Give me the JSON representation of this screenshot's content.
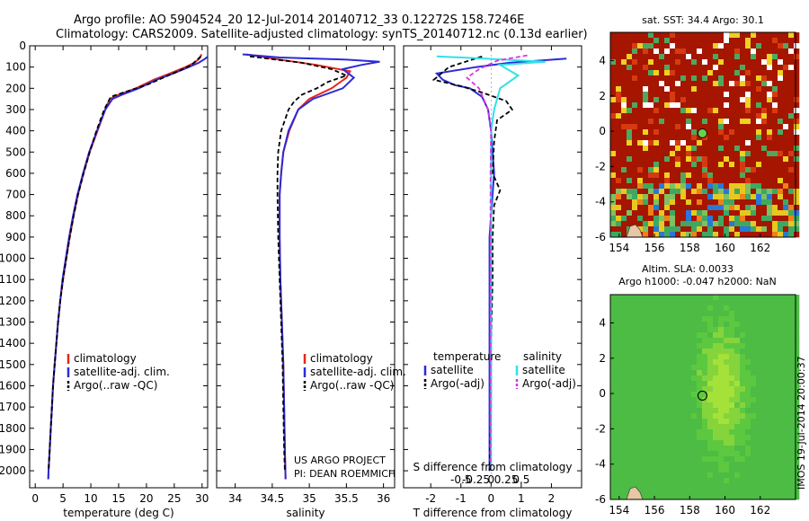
{
  "header": {
    "line1": "Argo profile: AO 5904524_20 12-Jul-2014 20140712_33 0.12272S 158.7246E",
    "line2": "Climatology: CARS2009. Satellite-adjusted climatology: synTS_20140712.nc (0.13d earlier)"
  },
  "colors": {
    "climatology": "#e8251b",
    "satellite": "#2b2bd6",
    "argo": "#000000",
    "sat_salinity": "#33e0e8",
    "argo_salinity_adj": "#e030e0"
  },
  "credits": {
    "line1": "US ARGO PROJECT",
    "line2": "PI: DEAN ROEMMICH"
  },
  "footer_stamp": "IMOS 19-Jul-2014 20:00:37",
  "chart_data": [
    {
      "id": "temperature",
      "type": "line",
      "xlabel": "temperature (deg C)",
      "ylabel": "",
      "xlim": [
        -1,
        31
      ],
      "ylim": [
        0,
        2080
      ],
      "y_reversed": true,
      "xticks": [
        0,
        5,
        10,
        15,
        20,
        25,
        30
      ],
      "yticks": [
        0,
        100,
        200,
        300,
        400,
        500,
        600,
        700,
        800,
        900,
        1000,
        1100,
        1200,
        1300,
        1400,
        1500,
        1600,
        1700,
        1800,
        1900,
        2000
      ],
      "legend": {
        "placement": "lower-center",
        "entries": [
          "climatology",
          "satellite-adj. clim.",
          "Argo(..raw -QC)"
        ]
      },
      "series": [
        {
          "name": "climatology",
          "color_key": "climatology",
          "dash": false,
          "points": [
            [
              29.9,
              40
            ],
            [
              29.5,
              60
            ],
            [
              28.6,
              80
            ],
            [
              27.0,
              100
            ],
            [
              24.2,
              130
            ],
            [
              21.3,
              160
            ],
            [
              18.1,
              200
            ],
            [
              15.0,
              230
            ],
            [
              13.4,
              250
            ],
            [
              12.6,
              300
            ],
            [
              11.2,
              400
            ],
            [
              9.8,
              500
            ],
            [
              8.7,
              600
            ],
            [
              7.7,
              700
            ],
            [
              6.9,
              800
            ],
            [
              6.2,
              900
            ],
            [
              5.6,
              1000
            ],
            [
              5.0,
              1100
            ],
            [
              4.5,
              1200
            ],
            [
              4.1,
              1300
            ],
            [
              3.8,
              1400
            ],
            [
              3.5,
              1500
            ],
            [
              3.2,
              1600
            ],
            [
              3.0,
              1700
            ],
            [
              2.8,
              1800
            ],
            [
              2.6,
              1900
            ],
            [
              2.4,
              2000
            ],
            [
              2.35,
              2040
            ]
          ]
        },
        {
          "name": "satellite-adj. clim.",
          "color_key": "satellite",
          "dash": false,
          "points": [
            [
              31.5,
              40
            ],
            [
              30.6,
              60
            ],
            [
              29.4,
              80
            ],
            [
              27.6,
              100
            ],
            [
              24.8,
              130
            ],
            [
              21.8,
              160
            ],
            [
              18.6,
              200
            ],
            [
              15.6,
              230
            ],
            [
              13.9,
              250
            ],
            [
              12.6,
              300
            ],
            [
              11.1,
              400
            ],
            [
              9.7,
              500
            ],
            [
              8.6,
              600
            ],
            [
              7.6,
              700
            ],
            [
              6.8,
              800
            ],
            [
              6.1,
              900
            ],
            [
              5.5,
              1000
            ],
            [
              4.9,
              1100
            ],
            [
              4.5,
              1200
            ],
            [
              4.1,
              1300
            ],
            [
              3.8,
              1400
            ],
            [
              3.5,
              1500
            ],
            [
              3.2,
              1600
            ],
            [
              3.0,
              1700
            ],
            [
              2.8,
              1800
            ],
            [
              2.6,
              1900
            ],
            [
              2.4,
              2000
            ],
            [
              2.35,
              2040
            ]
          ]
        },
        {
          "name": "Argo(..raw -QC)",
          "color_key": "argo",
          "dash": true,
          "points": [
            [
              29.8,
              50
            ],
            [
              28.9,
              70
            ],
            [
              28.1,
              90
            ],
            [
              26.5,
              110
            ],
            [
              23.0,
              150
            ],
            [
              20.4,
              180
            ],
            [
              17.0,
              210
            ],
            [
              14.7,
              230
            ],
            [
              13.6,
              240
            ],
            [
              13.0,
              270
            ],
            [
              12.4,
              300
            ],
            [
              11.0,
              400
            ],
            [
              9.8,
              500
            ],
            [
              8.7,
              600
            ],
            [
              7.7,
              700
            ],
            [
              6.9,
              800
            ],
            [
              6.2,
              900
            ],
            [
              5.6,
              1000
            ],
            [
              5.0,
              1100
            ],
            [
              4.5,
              1200
            ],
            [
              4.1,
              1300
            ],
            [
              3.8,
              1400
            ],
            [
              3.5,
              1500
            ],
            [
              3.2,
              1600
            ],
            [
              3.0,
              1700
            ],
            [
              2.8,
              1800
            ],
            [
              2.6,
              1900
            ],
            [
              2.4,
              2000
            ]
          ]
        }
      ]
    },
    {
      "id": "salinity",
      "type": "line",
      "xlabel": "salinity",
      "ylabel": "",
      "xlim": [
        33.75,
        36.15
      ],
      "ylim": [
        0,
        2080
      ],
      "y_reversed": true,
      "xticks": [
        34,
        34.5,
        35,
        35.5,
        36
      ],
      "xticklabels": [
        "34",
        "34.5",
        "35",
        "35.5",
        "36"
      ],
      "legend": {
        "placement": "lower-center",
        "entries": [
          "climatology",
          "satellite-adj. clim.",
          "Argo(..raw -QC)"
        ]
      },
      "series": [
        {
          "name": "climatology",
          "color_key": "climatology",
          "dash": false,
          "points": [
            [
              34.15,
              40
            ],
            [
              34.5,
              60
            ],
            [
              35.1,
              90
            ],
            [
              35.55,
              120
            ],
            [
              35.5,
              150
            ],
            [
              35.3,
              200
            ],
            [
              35.0,
              250
            ],
            [
              34.85,
              300
            ],
            [
              34.73,
              400
            ],
            [
              34.65,
              500
            ],
            [
              34.62,
              600
            ],
            [
              34.6,
              700
            ],
            [
              34.6,
              900
            ],
            [
              34.61,
              1100
            ],
            [
              34.63,
              1300
            ],
            [
              34.65,
              1500
            ],
            [
              34.66,
              1700
            ],
            [
              34.67,
              1900
            ],
            [
              34.68,
              2040
            ]
          ]
        },
        {
          "name": "satellite-adj. clim.",
          "color_key": "satellite",
          "dash": false,
          "points": [
            [
              34.1,
              40
            ],
            [
              34.6,
              55
            ],
            [
              35.5,
              65
            ],
            [
              35.95,
              75
            ],
            [
              35.7,
              90
            ],
            [
              35.45,
              110
            ],
            [
              35.6,
              150
            ],
            [
              35.45,
              200
            ],
            [
              35.05,
              250
            ],
            [
              34.85,
              300
            ],
            [
              34.72,
              400
            ],
            [
              34.65,
              500
            ],
            [
              34.62,
              600
            ],
            [
              34.6,
              700
            ],
            [
              34.6,
              900
            ],
            [
              34.61,
              1100
            ],
            [
              34.63,
              1300
            ],
            [
              34.65,
              1500
            ],
            [
              34.66,
              1700
            ],
            [
              34.67,
              1900
            ],
            [
              34.68,
              2040
            ]
          ]
        },
        {
          "name": "Argo(..raw -QC)",
          "color_key": "argo",
          "dash": true,
          "points": [
            [
              34.2,
              50
            ],
            [
              34.9,
              80
            ],
            [
              35.3,
              110
            ],
            [
              35.5,
              140
            ],
            [
              35.25,
              170
            ],
            [
              35.1,
              200
            ],
            [
              34.9,
              230
            ],
            [
              34.8,
              260
            ],
            [
              34.72,
              300
            ],
            [
              34.62,
              400
            ],
            [
              34.58,
              500
            ],
            [
              34.57,
              600
            ],
            [
              34.57,
              700
            ],
            [
              34.58,
              900
            ],
            [
              34.6,
              1100
            ],
            [
              34.62,
              1300
            ],
            [
              34.64,
              1500
            ],
            [
              34.65,
              1700
            ],
            [
              34.66,
              1900
            ],
            [
              34.67,
              2000
            ]
          ]
        }
      ]
    },
    {
      "id": "differences",
      "type": "line",
      "xlabel": "T difference from climatology",
      "top_label": "S difference from climatology",
      "xlim": [
        -2.9,
        3.0
      ],
      "ylim": [
        0,
        2080
      ],
      "y_reversed": true,
      "xticks": [
        -2,
        -1,
        0,
        1,
        2
      ],
      "top_ticks_T": [
        -1.0,
        -0.5,
        0,
        0.5,
        1.0
      ],
      "top_tick_labels": [
        "-0.5",
        "-0.25",
        "0",
        "0.25",
        "0.5"
      ],
      "legend": {
        "placement": "lower-center",
        "entries": [
          "temperature",
          "satellite",
          "Argo(-adj)",
          "salinity",
          "satellite",
          "Argo(-adj)"
        ]
      },
      "series": [
        {
          "name": "satellite",
          "group": "temperature",
          "color_key": "satellite",
          "dash": false,
          "points": [
            [
              2.5,
              60
            ],
            [
              0.6,
              80
            ],
            [
              -0.5,
              100
            ],
            [
              -1.8,
              130
            ],
            [
              -1.6,
              160
            ],
            [
              -1.2,
              185
            ],
            [
              -0.7,
              200
            ],
            [
              -0.3,
              240
            ],
            [
              -0.1,
              300
            ],
            [
              0,
              400
            ],
            [
              0.05,
              500
            ],
            [
              0.1,
              600
            ],
            [
              0.05,
              700
            ],
            [
              0,
              800
            ],
            [
              -0.05,
              900
            ],
            [
              -0.05,
              1100
            ],
            [
              -0.05,
              1400
            ],
            [
              -0.05,
              1700
            ],
            [
              -0.05,
              2000
            ]
          ]
        },
        {
          "name": "Argo(-adj)",
          "group": "temperature",
          "color_key": "argo",
          "dash": true,
          "points": [
            [
              -0.3,
              50
            ],
            [
              -1.4,
              100
            ],
            [
              -1.9,
              160
            ],
            [
              -1.0,
              190
            ],
            [
              -0.3,
              220
            ],
            [
              0.5,
              260
            ],
            [
              0.7,
              300
            ],
            [
              0.2,
              350
            ],
            [
              0.1,
              450
            ],
            [
              0.05,
              600
            ],
            [
              0.3,
              680
            ],
            [
              0.1,
              750
            ],
            [
              0.05,
              900
            ],
            [
              0.05,
              1100
            ],
            [
              0,
              1400
            ],
            [
              0,
              1700
            ],
            [
              -0.05,
              2000
            ]
          ]
        },
        {
          "name": "satellite",
          "group": "salinity",
          "color_key": "sat_salinity",
          "dash": false,
          "points": [
            [
              -1.8,
              50
            ],
            [
              -0.2,
              60
            ],
            [
              1.8,
              75
            ],
            [
              0.3,
              90
            ],
            [
              0.9,
              140
            ],
            [
              0.3,
              200
            ],
            [
              0.1,
              300
            ],
            [
              0,
              400
            ],
            [
              0,
              600
            ],
            [
              0,
              900
            ],
            [
              0,
              1200
            ],
            [
              0,
              1500
            ],
            [
              0,
              2000
            ]
          ]
        },
        {
          "name": "Argo(-adj)",
          "group": "salinity",
          "color_key": "argo_salinity_adj",
          "dash": true,
          "points": [
            [
              1.2,
              45
            ],
            [
              0.2,
              70
            ],
            [
              -0.4,
              110
            ],
            [
              -0.8,
              150
            ],
            [
              -0.4,
              200
            ],
            [
              -0.1,
              300
            ],
            [
              0,
              400
            ],
            [
              -0.02,
              600
            ],
            [
              -0.02,
              900
            ],
            [
              -0.02,
              1200
            ],
            [
              -0.02,
              1500
            ],
            [
              -0.02,
              2000
            ]
          ]
        }
      ]
    },
    {
      "id": "sst_map",
      "type": "heatmap",
      "title": "sat. SST: 34.4  Argo: 30.1",
      "xlim": [
        153.5,
        164
      ],
      "ylim": [
        -6,
        5.6
      ],
      "xticks": [
        154,
        156,
        158,
        160,
        162
      ],
      "yticks": [
        4,
        2,
        0,
        -2,
        -4,
        -6
      ],
      "marker": {
        "x": 158.72,
        "y": -0.12
      }
    },
    {
      "id": "sla_map",
      "type": "heatmap",
      "title_line1": "Altim. SLA: 0.0033",
      "title_line2": "Argo h1000: -0.047 h2000: NaN",
      "xlim": [
        153.5,
        164
      ],
      "ylim": [
        -6,
        5.6
      ],
      "xticks": [
        154,
        156,
        158,
        160,
        162
      ],
      "yticks": [
        4,
        2,
        0,
        -2,
        -4,
        -6
      ],
      "marker": {
        "x": 158.72,
        "y": -0.12
      }
    }
  ]
}
